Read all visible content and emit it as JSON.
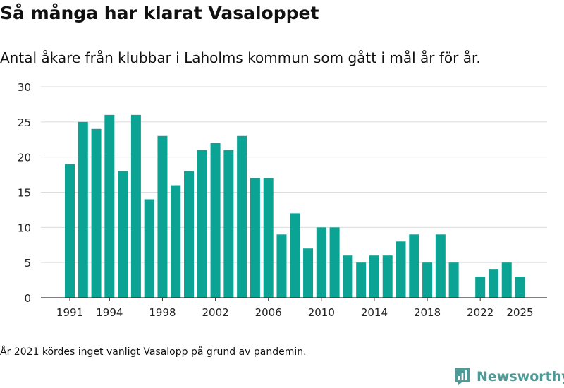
{
  "header": {
    "title": "Så många har klarat Vasaloppet",
    "subtitle": "Antal åkare från klubbar i Laholms kommun som gått i mål år för år."
  },
  "footnote": "År 2021 kördes inget vanligt Vasalopp på grund av pandemin.",
  "brand": {
    "name": "Newsworthy",
    "color": "#4e9a96",
    "icon": "newsworthy-logo-icon"
  },
  "chart_data": {
    "type": "bar",
    "categories": [
      1991,
      1992,
      1993,
      1994,
      1995,
      1996,
      1997,
      1998,
      1999,
      2000,
      2001,
      2002,
      2003,
      2004,
      2005,
      2006,
      2007,
      2008,
      2009,
      2010,
      2011,
      2012,
      2013,
      2014,
      2015,
      2016,
      2017,
      2018,
      2019,
      2020,
      2021,
      2022,
      2023,
      2024,
      2025
    ],
    "values": [
      19,
      25,
      24,
      26,
      18,
      26,
      14,
      23,
      16,
      18,
      21,
      22,
      21,
      23,
      17,
      17,
      9,
      12,
      7,
      10,
      10,
      6,
      5,
      6,
      6,
      8,
      9,
      5,
      9,
      5,
      0,
      3,
      4,
      5,
      3
    ],
    "x_tick_labels": [
      "1991",
      "1994",
      "1998",
      "2002",
      "2006",
      "2010",
      "2014",
      "2018",
      "2022",
      "2025"
    ],
    "y_ticks": [
      0,
      5,
      10,
      15,
      20,
      25,
      30
    ],
    "ylim": [
      0,
      30
    ],
    "bar_color": "#0ba394",
    "grid": true,
    "legend": "none",
    "xlabel": "",
    "ylabel": ""
  }
}
